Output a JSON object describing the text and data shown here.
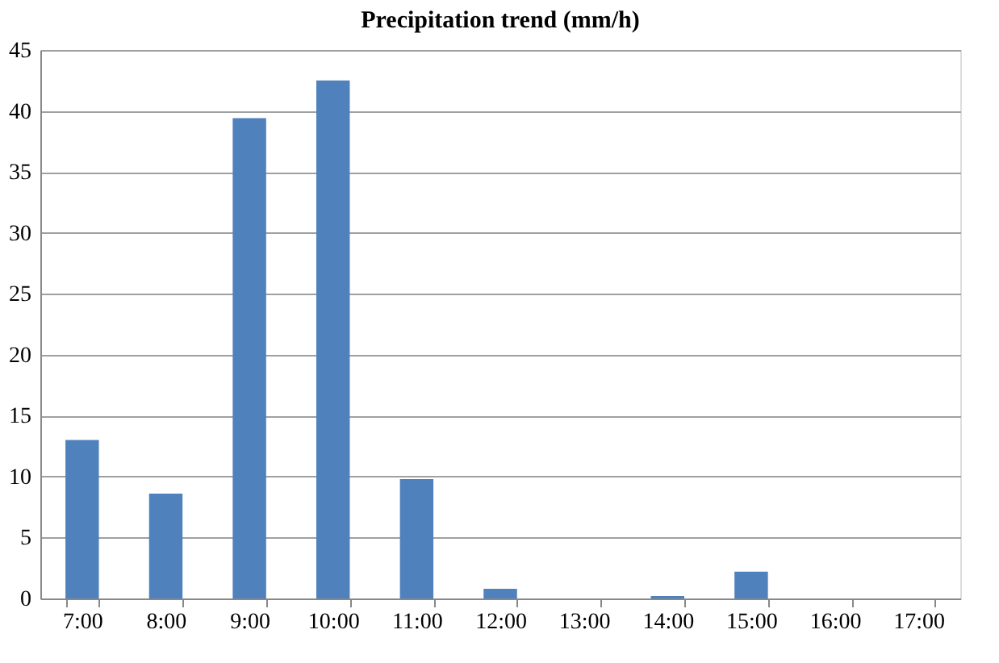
{
  "chart_data": {
    "type": "bar",
    "title": "Precipitation trend (mm/h)",
    "categories": [
      "7:00",
      "8:00",
      "9:00",
      "10:00",
      "11:00",
      "12:00",
      "13:00",
      "14:00",
      "15:00",
      "16:00",
      "17:00"
    ],
    "values": [
      13,
      8.6,
      39.4,
      42.5,
      9.8,
      0.8,
      0,
      0.2,
      2.2,
      0,
      0
    ],
    "color": "#4f81bd",
    "ylim": [
      0,
      45
    ],
    "yticks": [
      0,
      5,
      10,
      15,
      20,
      25,
      30,
      35,
      40,
      45
    ],
    "grid": "y"
  }
}
